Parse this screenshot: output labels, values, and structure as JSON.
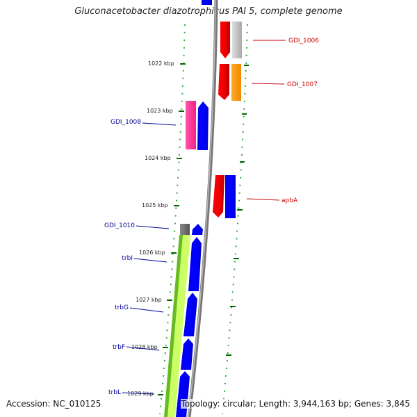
{
  "title": "Gluconacetobacter diazotrophicus PAI 5, complete genome",
  "footer": {
    "accession": "Accession: NC_010125",
    "summary": "Topology: circular; Length: 3,944,163 bp; Genes: 3,845"
  },
  "kbp_labels": [
    "1022 kbp",
    "1023 kbp",
    "1024 kbp",
    "1025 kbp",
    "1026 kbp",
    "1027 kbp",
    "1028 kbp",
    "1029 kbp"
  ],
  "gene_labels": {
    "gdi_1006": "GDI_1006",
    "gdi_1007": "GDI_1007",
    "gdi_1008": "GDI_1008",
    "apba": "apbA",
    "gdi_1010": "GDI_1010",
    "trbi": "trbI",
    "trbg": "trbG",
    "trbf": "trbF",
    "trbl": "trbL"
  },
  "colors": {
    "forward_label": "#cc0000",
    "reverse_label": "#000099",
    "red_feature": "#ff0000",
    "blue_feature": "#0000ff",
    "gray_feature": "#c0c0c0",
    "orange_feature": "#ff9900",
    "pink_feature": "#ff3399",
    "lime_feature": "#ccff66",
    "green_feature": "#66cc33",
    "backbone": "#999999",
    "ticks": "#006600"
  }
}
